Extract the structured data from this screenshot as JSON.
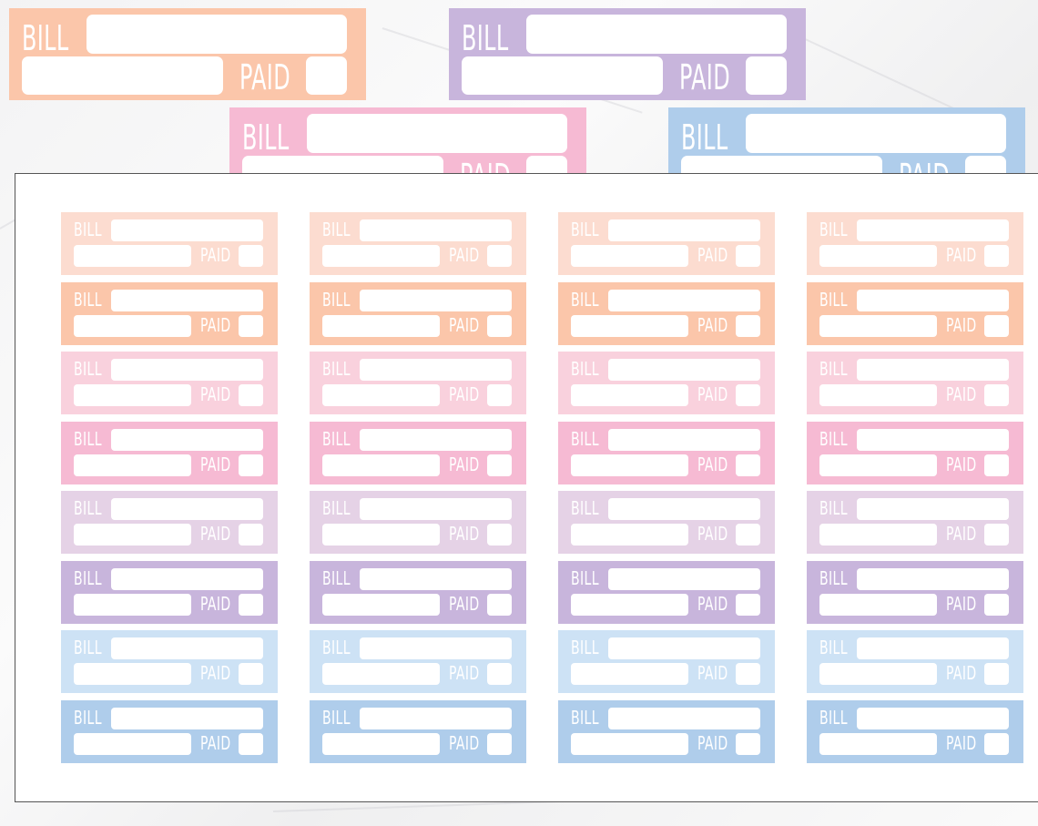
{
  "labels": {
    "bill": "BILL",
    "paid": "PAID"
  },
  "colors": {
    "peach_light": "#fcdcd0",
    "peach": "#fbc6aa",
    "pink_light": "#f9d1dd",
    "pink": "#f6bad3",
    "lavender_light": "#e5d2e6",
    "lavender": "#c8b5dc",
    "blue_light": "#cde2f5",
    "blue": "#afcdeb"
  },
  "large_stickers": [
    {
      "color": "peach"
    },
    {
      "color": "lavender"
    },
    {
      "color": "pink"
    },
    {
      "color": "blue"
    }
  ],
  "grid": {
    "columns": 4,
    "rows": [
      "peach_light",
      "peach",
      "pink_light",
      "pink",
      "lavender_light",
      "lavender",
      "blue_light",
      "blue"
    ]
  }
}
